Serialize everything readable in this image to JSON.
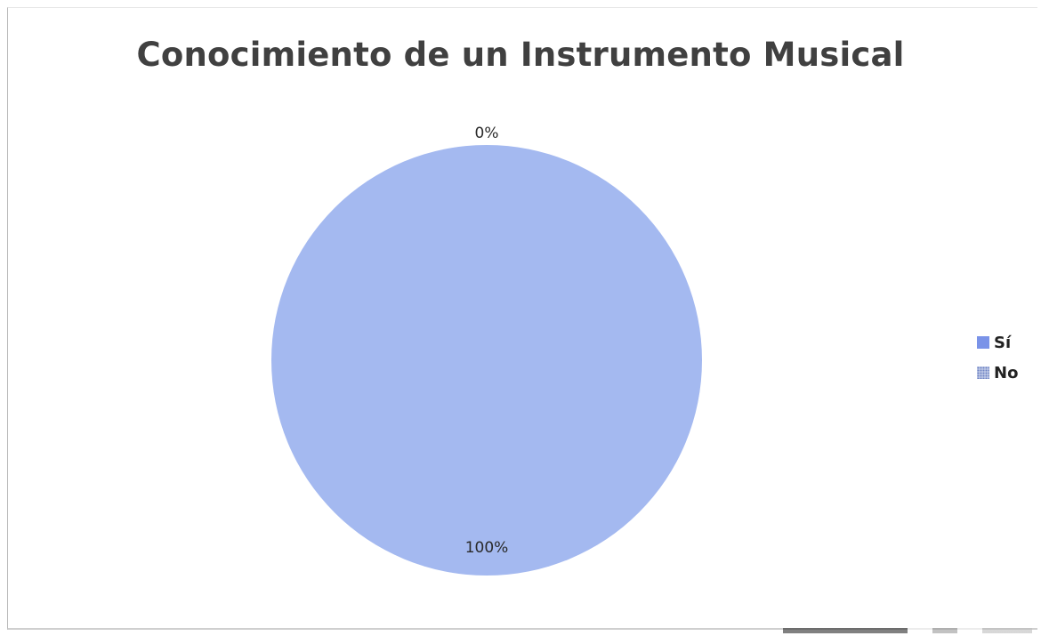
{
  "chart_data": {
    "type": "pie",
    "title": "Conocimiento de un Instrumento Musical",
    "categories": [
      "Sí",
      "No"
    ],
    "values": [
      100,
      0
    ],
    "data_labels": [
      "100%",
      "0%"
    ],
    "colors": [
      "#a4b9f0",
      "#8ea3d6"
    ],
    "legend": {
      "placement": "right",
      "items": [
        {
          "label": "Sí",
          "color": "#7a93e8"
        },
        {
          "label": "No",
          "color": "#8ea3d6",
          "pattern": "dotted"
        }
      ]
    }
  }
}
